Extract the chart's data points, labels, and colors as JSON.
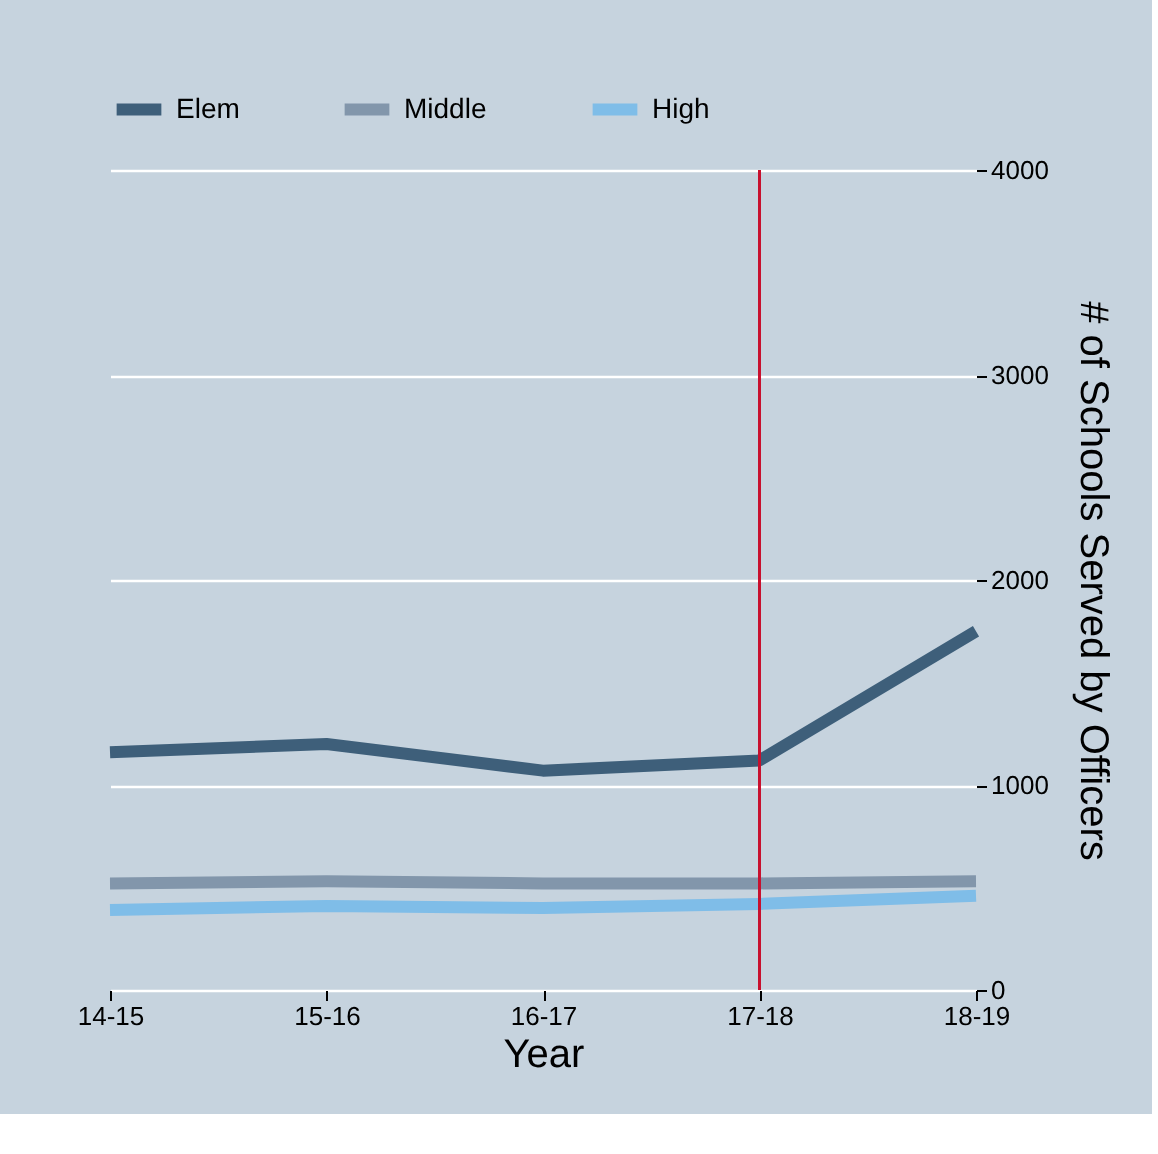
{
  "chart_data": {
    "type": "line",
    "xlabel": "Year",
    "ylabel": "# of Schools Served by Officers",
    "categories": [
      "14-15",
      "15-16",
      "16-17",
      "17-18",
      "18-19"
    ],
    "series": [
      {
        "name": "Elem",
        "color": "#3e5f7a",
        "values": [
          1160,
          1200,
          1070,
          1120,
          1750
        ]
      },
      {
        "name": "Middle",
        "color": "#8296ab",
        "values": [
          520,
          530,
          520,
          520,
          530
        ]
      },
      {
        "name": "High",
        "color": "#7fbde8",
        "values": [
          390,
          410,
          400,
          420,
          460
        ]
      }
    ],
    "ylim": [
      0,
      4000
    ],
    "yticks": [
      0,
      1000,
      2000,
      3000,
      4000
    ],
    "grid": "y",
    "legend": "top",
    "ref_lines": [
      {
        "axis": "x",
        "value": "17-18",
        "color": "#c8102e"
      }
    ],
    "line_style": "solid",
    "marker": "none"
  }
}
